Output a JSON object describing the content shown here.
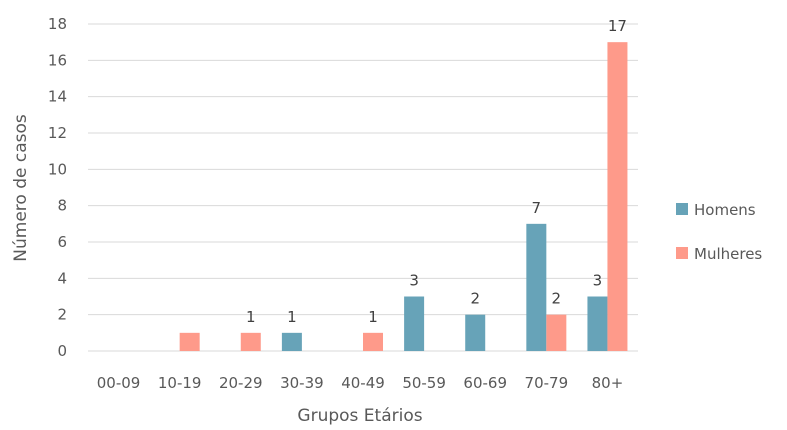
{
  "chart_data": {
    "type": "bar",
    "categories": [
      "00-09",
      "10-19",
      "20-29",
      "30-39",
      "40-49",
      "50-59",
      "60-69",
      "70-79",
      "80+"
    ],
    "series": [
      {
        "name": "Homens",
        "color": "#67A3B8",
        "values": [
          0,
          0,
          0,
          1,
          0,
          3,
          2,
          7,
          3
        ]
      },
      {
        "name": "Mulheres",
        "color": "#FE9A8A",
        "values": [
          0,
          1,
          1,
          0,
          1,
          0,
          0,
          2,
          17
        ]
      }
    ],
    "data_labels": [
      {
        "category": "20-29",
        "series": "Mulheres",
        "text": "1"
      },
      {
        "category": "30-39",
        "series": "Homens",
        "text": "1"
      },
      {
        "category": "40-49",
        "series": "Mulheres",
        "text": "1"
      },
      {
        "category": "50-59",
        "series": "Homens",
        "text": "3"
      },
      {
        "category": "60-69",
        "series": "Homens",
        "text": "2"
      },
      {
        "category": "70-79",
        "series": "Homens",
        "text": "7"
      },
      {
        "category": "70-79",
        "series": "Mulheres",
        "text": "2"
      },
      {
        "category": "80+",
        "series": "Homens",
        "text": "3"
      },
      {
        "category": "80+",
        "series": "Mulheres",
        "text": "17"
      }
    ],
    "title": "",
    "xlabel": "Grupos Etários",
    "ylabel": "Número de casos",
    "ylim": [
      0,
      18
    ],
    "yticks": [
      0,
      2,
      4,
      6,
      8,
      10,
      12,
      14,
      16,
      18
    ],
    "grid": true,
    "legend_position": "right"
  }
}
